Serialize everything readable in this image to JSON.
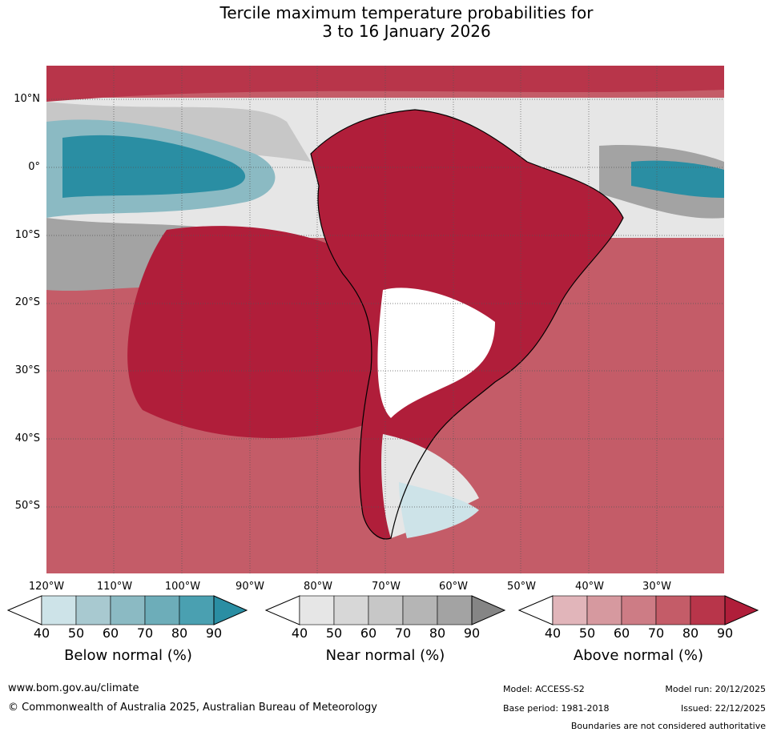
{
  "title": {
    "line1": "Tercile maximum temperature probabilities for",
    "line2": "3 to 16 January 2026"
  },
  "map": {
    "region": "South America",
    "lat_labels": [
      "10°N",
      "0°",
      "10°S",
      "20°S",
      "30°S",
      "40°S",
      "50°S"
    ],
    "lon_labels": [
      "120°W",
      "110°W",
      "100°W",
      "90°W",
      "80°W",
      "70°W",
      "60°W",
      "50°W",
      "40°W",
      "30°W"
    ]
  },
  "legend": {
    "below": {
      "title": "Below normal (%)",
      "ticks": [
        "40",
        "50",
        "60",
        "70",
        "80",
        "90"
      ],
      "colors": [
        "#cde3e8",
        "#a8c9d0",
        "#8bbac3",
        "#6dadb9",
        "#4aa0b1",
        "#2a8ea3"
      ]
    },
    "near": {
      "title": "Near normal (%)",
      "ticks": [
        "40",
        "50",
        "60",
        "70",
        "80",
        "90"
      ],
      "colors": [
        "#e6e6e6",
        "#d7d7d7",
        "#c7c7c7",
        "#b5b5b5",
        "#a3a3a3",
        "#858585"
      ]
    },
    "above": {
      "title": "Above normal (%)",
      "ticks": [
        "40",
        "50",
        "60",
        "70",
        "80",
        "90"
      ],
      "colors": [
        "#e1b5ba",
        "#d6999f",
        "#cd7c85",
        "#c45c68",
        "#b8354a",
        "#b01e3a"
      ]
    }
  },
  "footer": {
    "url": "www.bom.gov.au/climate",
    "copyright": "© Commonwealth of Australia 2025, Australian Bureau of Meteorology",
    "model": "Model: ACCESS-S2",
    "base_period": "Base period: 1981-2018",
    "model_run": "Model run: 20/12/2025",
    "issued": "Issued: 22/12/2025",
    "disclaimer": "Boundaries are not considered authoritative"
  }
}
